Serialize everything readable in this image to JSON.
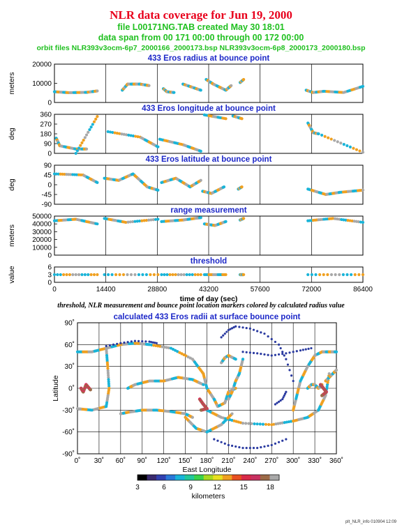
{
  "header": {
    "title": "NLR data coverage for Jun 19, 2000",
    "line1": "file L00171NG.TAB created May 30 18:01",
    "line2": "data span from 00 171 00:00 through 00 172 00:00",
    "line3": "orbit files NLR393v3ocm-6p7_2000166_2000173.bsp NLR393v3ocm-6p8_2000173_2000180.bsp"
  },
  "caption": "threshold, NLR measurement and bounce point location markers colored by calculated radius value",
  "footer": "plt_NLR_info 010904 12:09",
  "colors": {
    "title": "#e8001c",
    "subtitle": "#20c020",
    "panel_title": "#1d28c8"
  },
  "chart_data": [
    {
      "type": "scatter",
      "title": "433 Eros radius at bounce point",
      "ylabel": "meters",
      "ylim": [
        0,
        25000
      ],
      "yticks": [
        "0",
        "10000",
        "20000"
      ],
      "xlim": [
        0,
        86400
      ],
      "segments": [
        {
          "x": [
            0,
            4000,
            9000,
            12000
          ],
          "y": [
            7000,
            6400,
            6600,
            7500
          ]
        },
        {
          "x": [
            19000,
            20500,
            24000,
            26500
          ],
          "y": [
            8000,
            12000,
            12000,
            11000
          ]
        },
        {
          "x": [
            30500,
            31500,
            33500
          ],
          "y": [
            9000,
            7000,
            6500
          ]
        },
        {
          "x": [
            36000,
            38500,
            41000
          ],
          "y": [
            12000,
            10000,
            8000
          ]
        },
        {
          "x": [
            42500,
            44500,
            48000,
            49500
          ],
          "y": [
            15000,
            12000,
            8000,
            11000
          ]
        },
        {
          "x": [
            52000,
            53000
          ],
          "y": [
            13000,
            15000
          ]
        },
        {
          "x": [
            70500,
            72500,
            75500,
            81000,
            86400
          ],
          "y": [
            8000,
            6500,
            7300,
            6500,
            10500
          ]
        }
      ]
    },
    {
      "type": "scatter",
      "title": "433 Eros longitude at bounce point",
      "ylabel": "deg",
      "ylim": [
        0,
        360
      ],
      "yticks": [
        "0",
        "90",
        "180",
        "270",
        "360"
      ],
      "xlim": [
        0,
        86400
      ],
      "segments": [
        {
          "x": [
            500,
            1500,
            6000,
            9000
          ],
          "y": [
            140,
            70,
            40,
            40
          ]
        },
        {
          "x": [
            6000,
            12000
          ],
          "y": [
            0,
            340
          ]
        },
        {
          "x": [
            15000,
            24000,
            29000
          ],
          "y": [
            200,
            150,
            60
          ]
        },
        {
          "x": [
            29500,
            36000,
            41000
          ],
          "y": [
            130,
            80,
            20
          ]
        },
        {
          "x": [
            42000,
            48000
          ],
          "y": [
            355,
            320
          ]
        },
        {
          "x": [
            50000,
            52500
          ],
          "y": [
            345,
            320
          ]
        },
        {
          "x": [
            71000,
            72500,
            74000,
            86400
          ],
          "y": [
            280,
            190,
            180,
            10
          ]
        }
      ]
    },
    {
      "type": "scatter",
      "title": "433 Eros latitude at bounce point",
      "ylabel": "deg",
      "ylim": [
        -90,
        90
      ],
      "yticks": [
        "-90",
        "-45",
        "0",
        "45",
        "90"
      ],
      "xlim": [
        0,
        86400
      ],
      "segments": [
        {
          "x": [
            0,
            8000,
            12000
          ],
          "y": [
            50,
            45,
            10
          ]
        },
        {
          "x": [
            14000,
            18000,
            22000,
            26000,
            29000
          ],
          "y": [
            30,
            20,
            50,
            -10,
            -25
          ]
        },
        {
          "x": [
            30000,
            34000,
            38000,
            41000
          ],
          "y": [
            10,
            30,
            -10,
            20
          ]
        },
        {
          "x": [
            41500,
            44000,
            47500
          ],
          "y": [
            -30,
            -40,
            -10
          ]
        },
        {
          "x": [
            51500,
            52500
          ],
          "y": [
            -20,
            -10
          ]
        },
        {
          "x": [
            71000,
            76000,
            80000,
            86400
          ],
          "y": [
            -20,
            -45,
            -35,
            -25
          ]
        }
      ]
    },
    {
      "type": "scatter",
      "title": "range measurement",
      "ylabel": "meters",
      "ylim": [
        0,
        50000
      ],
      "yticks": [
        "0",
        "10000",
        "20000",
        "30000",
        "40000",
        "50000"
      ],
      "xlim": [
        0,
        86400
      ],
      "segments": [
        {
          "x": [
            0,
            6000,
            12000
          ],
          "y": [
            44000,
            46000,
            40000
          ]
        },
        {
          "x": [
            14000,
            20000,
            29000
          ],
          "y": [
            47000,
            42000,
            46000
          ]
        },
        {
          "x": [
            30000,
            36000,
            41000
          ],
          "y": [
            43000,
            45000,
            48000
          ]
        },
        {
          "x": [
            42000,
            45000,
            48000
          ],
          "y": [
            40000,
            38000,
            43000
          ]
        },
        {
          "x": [
            52000,
            53000
          ],
          "y": [
            45000,
            47000
          ]
        },
        {
          "x": [
            71000,
            78000,
            86400
          ],
          "y": [
            44000,
            47000,
            42000
          ]
        }
      ]
    },
    {
      "type": "scatter",
      "title": "threshold",
      "ylabel": "value",
      "ylim": [
        0,
        6
      ],
      "yticks": [
        "0",
        "3",
        "6"
      ],
      "xlim": [
        0,
        86400
      ],
      "xticks": [
        "0",
        "14400",
        "28800",
        "43200",
        "57600",
        "72000",
        "86400"
      ],
      "xlabel": "time of day (sec)",
      "segments": [
        {
          "x": [
            0,
            12000
          ],
          "y": [
            3,
            3
          ]
        },
        {
          "x": [
            14000,
            29000
          ],
          "y": [
            3,
            3
          ]
        },
        {
          "x": [
            30000,
            41000
          ],
          "y": [
            3,
            3
          ]
        },
        {
          "x": [
            42000,
            48000
          ],
          "y": [
            3,
            3
          ]
        },
        {
          "x": [
            52000,
            53000
          ],
          "y": [
            3,
            3
          ]
        },
        {
          "x": [
            71000,
            86400
          ],
          "y": [
            3,
            3
          ]
        }
      ]
    },
    {
      "type": "scatter",
      "title": "calculated 433 Eros radii at surface bounce point",
      "xlabel": "East Longitude",
      "ylabel": "Latitude",
      "xlim": [
        0,
        360
      ],
      "ylim": [
        -90,
        90
      ],
      "xticks": [
        "0˚",
        "30˚",
        "60˚",
        "90˚",
        "120˚",
        "150˚",
        "180˚",
        "210˚",
        "240˚",
        "270˚",
        "300˚",
        "330˚",
        "360˚"
      ],
      "yticks": [
        "-90˚",
        "-60˚",
        "-30˚",
        "0˚",
        "30˚",
        "60˚",
        "90˚"
      ],
      "segments": [
        {
          "x": [
            0,
            20,
            40,
            60,
            80,
            100,
            130,
            160,
            175
          ],
          "y": [
            50,
            50,
            55,
            60,
            62,
            60,
            55,
            40,
            20
          ]
        },
        {
          "x": [
            40,
            42,
            44,
            40,
            20,
            0
          ],
          "y": [
            55,
            30,
            0,
            -25,
            -30,
            -28
          ]
        },
        {
          "x": [
            175,
            180,
            190,
            195,
            205,
            210,
            220
          ],
          "y": [
            20,
            0,
            -15,
            -25,
            -20,
            -5,
            0
          ]
        },
        {
          "x": [
            180,
            200,
            230,
            270,
            300,
            320,
            335,
            345,
            350
          ],
          "y": [
            -30,
            -40,
            -48,
            -50,
            -45,
            -40,
            -30,
            -10,
            20
          ]
        },
        {
          "x": [
            60,
            70,
            90,
            110,
            130,
            150,
            160
          ],
          "y": [
            -35,
            -33,
            -30,
            -30,
            -32,
            -35,
            -40
          ]
        },
        {
          "x": [
            150,
            165,
            180,
            200,
            215
          ],
          "y": [
            -40,
            -55,
            -60,
            -50,
            -35
          ]
        },
        {
          "x": [
            70,
            80,
            100,
            120,
            140,
            160,
            175
          ],
          "y": [
            0,
            5,
            10,
            10,
            15,
            12,
            5
          ]
        },
        {
          "x": [
            210,
            215,
            220,
            225,
            230
          ],
          "y": [
            -15,
            -5,
            10,
            20,
            40
          ]
        },
        {
          "x": [
            300,
            305,
            310,
            320,
            330,
            340,
            350,
            360
          ],
          "y": [
            -30,
            -10,
            10,
            30,
            45,
            50,
            50,
            50
          ]
        },
        {
          "x": [
            320,
            325,
            330,
            335,
            340
          ],
          "y": [
            0,
            5,
            5,
            0,
            5
          ]
        },
        {
          "x": [
            200,
            205,
            210,
            220
          ],
          "y": [
            35,
            42,
            45,
            40
          ]
        },
        {
          "x": [
            345,
            350,
            355,
            360
          ],
          "y": [
            10,
            15,
            20,
            25
          ]
        }
      ],
      "dots": [
        {
          "x": [
            40,
            60,
            80,
            100,
            110
          ],
          "y": [
            58,
            62,
            65,
            64,
            62
          ]
        },
        {
          "x": [
            230,
            250,
            270,
            290,
            310,
            325
          ],
          "y": [
            50,
            48,
            45,
            48,
            52,
            55
          ]
        },
        {
          "x": [
            200,
            210,
            220,
            240,
            260,
            280,
            290,
            300
          ],
          "y": [
            70,
            80,
            85,
            82,
            75,
            60,
            40,
            10
          ]
        },
        {
          "x": [
            290,
            285,
            275
          ],
          "y": [
            -5,
            -15,
            -22
          ]
        },
        {
          "x": [
            190,
            210,
            230,
            250,
            270,
            290
          ],
          "y": [
            -70,
            -78,
            -82,
            -82,
            -78,
            -70
          ]
        }
      ],
      "clusters": [
        {
          "x": [
            5,
            8,
            12,
            18
          ],
          "y": [
            0,
            -5,
            5,
            -2
          ]
        },
        {
          "x": [
            170,
            175,
            180,
            172
          ],
          "y": [
            -15,
            -22,
            -28,
            -30
          ]
        },
        {
          "x": [
            338,
            342,
            346,
            340
          ],
          "y": [
            5,
            0,
            -5,
            -10
          ]
        }
      ],
      "colorbar": {
        "label": "kilometers",
        "ticks": [
          "3",
          "6",
          "9",
          "12",
          "15",
          "18"
        ],
        "range": [
          3,
          19
        ]
      }
    }
  ]
}
